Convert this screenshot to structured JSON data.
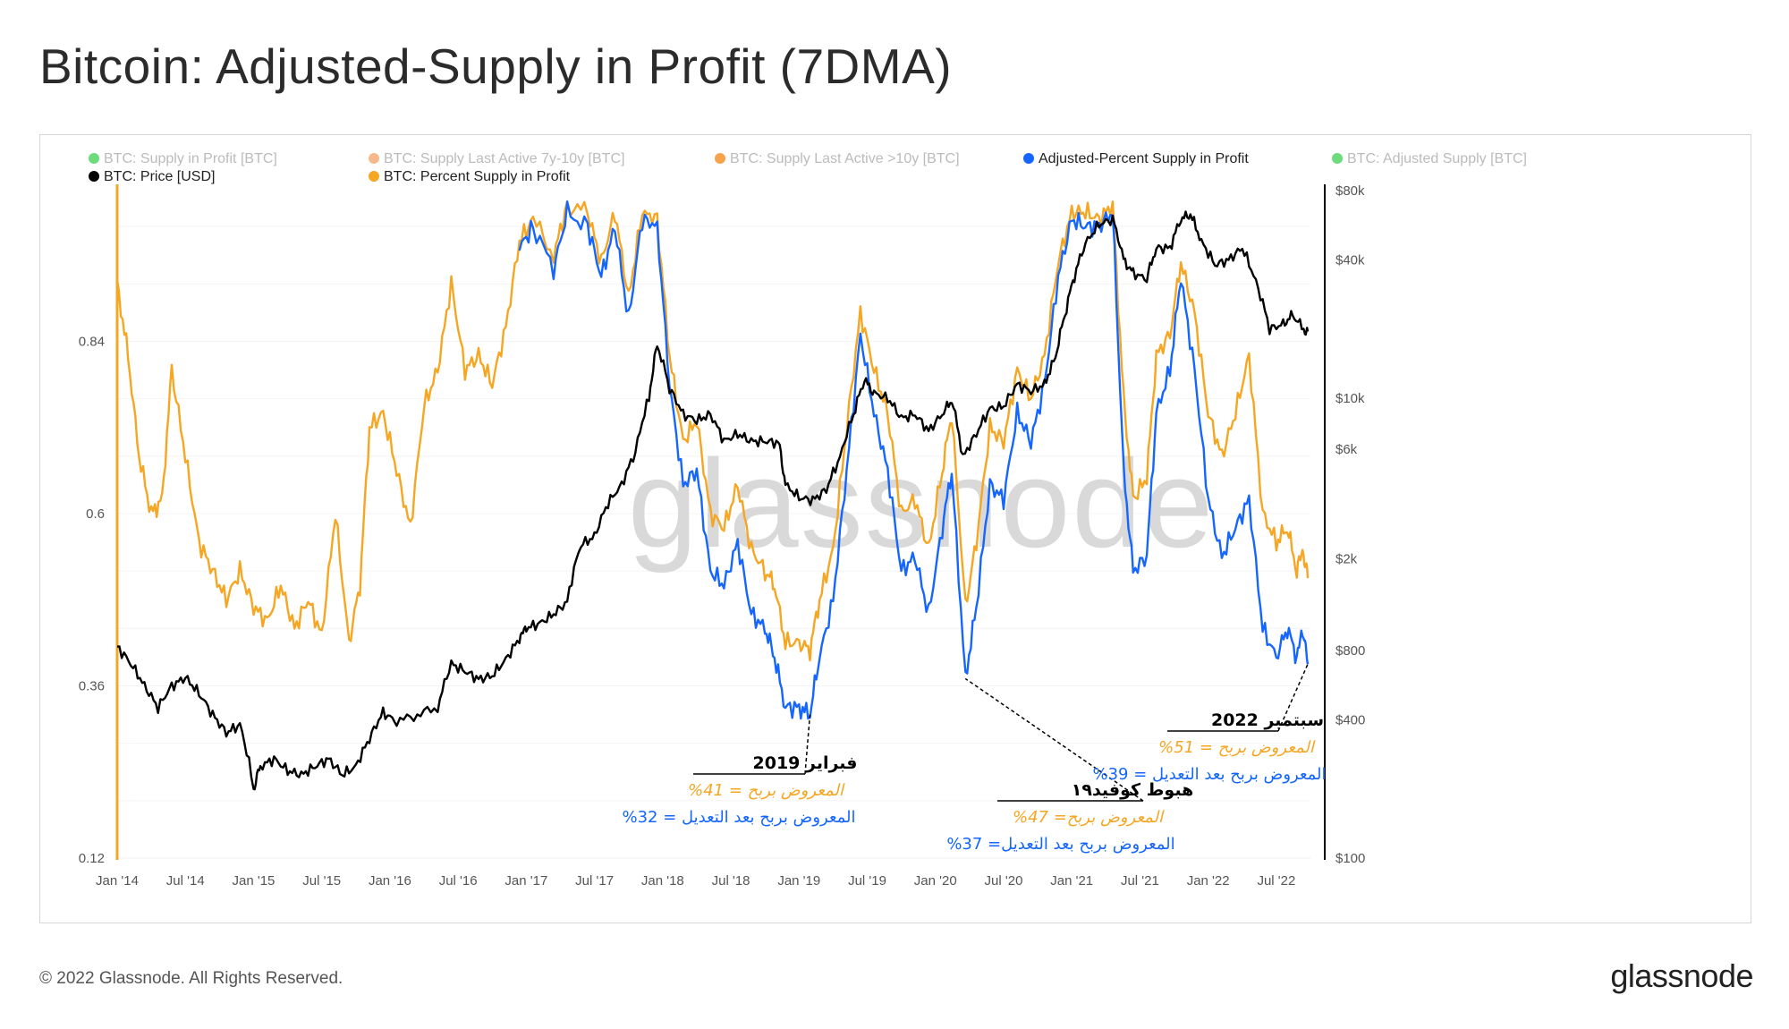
{
  "title": "Bitcoin: Adjusted-Supply in Profit (7DMA)",
  "footer": {
    "copyright": "© 2022 Glassnode. All Rights Reserved.",
    "logo": "glassnode"
  },
  "watermark": "glassnode",
  "legend": [
    {
      "label": "BTC: Supply in Profit [BTC]",
      "color": "#2ecc40",
      "dim": true
    },
    {
      "label": "BTC: Supply Last Active 7y-10y [BTC]",
      "color": "#f39a5a",
      "dim": true
    },
    {
      "label": "BTC: Supply Last Active >10y [BTC]",
      "color": "#f57c00",
      "dim": true
    },
    {
      "label": "Adjusted-Percent Supply in Profit",
      "color": "#1565ff",
      "dim": false
    },
    {
      "label": "BTC: Adjusted Supply [BTC]",
      "color": "#2ecc40",
      "dim": true
    },
    {
      "label": "BTC: Price [USD]",
      "color": "#000000",
      "dim": false
    },
    {
      "label": "BTC: Percent Supply in Profit",
      "color": "#f5a623",
      "dim": false
    }
  ],
  "colors": {
    "price": "#000000",
    "percent_supply": "#f5a623",
    "adjusted_percent": "#1565ff",
    "left_axis_line": "#f5a623",
    "annotation_dark": "#000000"
  },
  "annotations": [
    {
      "id": "feb2019",
      "title": "فبراير 2019",
      "line1": "المعروض بربح = 41%",
      "line2": "المعروض بربح بعد التعديل = 32%"
    },
    {
      "id": "covid",
      "title": "هبوط كوفيد١٩",
      "line1": "المعروض بربح= 47%",
      "line2": "المعروض بربح بعد التعديل= 37%"
    },
    {
      "id": "sep2022",
      "title": "سبتمبر 2022",
      "line1": "المعروض بربح = 51%",
      "line2": "المعروض بربح بعد التعديل = 39%"
    }
  ],
  "chart_data": {
    "type": "line",
    "title": "Bitcoin: Adjusted-Supply in Profit (7DMA)",
    "x_ticks": [
      "Jan '14",
      "Jul '14",
      "Jan '15",
      "Jul '15",
      "Jan '16",
      "Jul '16",
      "Jan '17",
      "Jul '17",
      "Jan '18",
      "Jul '18",
      "Jan '19",
      "Jul '19",
      "Jan '20",
      "Jul '20",
      "Jan '21",
      "Jul '21",
      "Jan '22",
      "Jul '22"
    ],
    "x_range": [
      2014.0,
      2022.75
    ],
    "y_left": {
      "ticks": [
        "0.12",
        "0.36",
        "0.6",
        "0.84"
      ],
      "range": [
        0.12,
        1.05
      ]
    },
    "y_right": {
      "ticks": [
        "$100",
        "$400",
        "$800",
        "$2k",
        "$6k",
        "$10k",
        "$40k",
        "$80k"
      ],
      "scale": "log",
      "range": [
        100,
        80000
      ]
    },
    "grid": true,
    "legend_position": "top",
    "series": [
      {
        "name": "BTC: Price [USD]",
        "axis": "right",
        "points": [
          [
            2014.0,
            830
          ],
          [
            2014.1,
            700
          ],
          [
            2014.2,
            560
          ],
          [
            2014.3,
            450
          ],
          [
            2014.4,
            560
          ],
          [
            2014.5,
            610
          ],
          [
            2014.6,
            520
          ],
          [
            2014.7,
            420
          ],
          [
            2014.8,
            350
          ],
          [
            2014.9,
            380
          ],
          [
            2015.0,
            200
          ],
          [
            2015.05,
            250
          ],
          [
            2015.15,
            270
          ],
          [
            2015.25,
            240
          ],
          [
            2015.35,
            230
          ],
          [
            2015.45,
            250
          ],
          [
            2015.55,
            270
          ],
          [
            2015.65,
            230
          ],
          [
            2015.75,
            250
          ],
          [
            2015.85,
            330
          ],
          [
            2015.95,
            430
          ],
          [
            2016.05,
            390
          ],
          [
            2016.2,
            420
          ],
          [
            2016.35,
            450
          ],
          [
            2016.45,
            700
          ],
          [
            2016.55,
            650
          ],
          [
            2016.65,
            600
          ],
          [
            2016.75,
            620
          ],
          [
            2016.85,
            730
          ],
          [
            2016.95,
            900
          ],
          [
            2017.0,
            1000
          ],
          [
            2017.1,
            1050
          ],
          [
            2017.2,
            1150
          ],
          [
            2017.3,
            1300
          ],
          [
            2017.4,
            2300
          ],
          [
            2017.5,
            2500
          ],
          [
            2017.6,
            3500
          ],
          [
            2017.7,
            4200
          ],
          [
            2017.8,
            5800
          ],
          [
            2017.9,
            10000
          ],
          [
            2017.96,
            17000
          ],
          [
            2018.05,
            11000
          ],
          [
            2018.15,
            8500
          ],
          [
            2018.25,
            8000
          ],
          [
            2018.35,
            8500
          ],
          [
            2018.45,
            6500
          ],
          [
            2018.55,
            7000
          ],
          [
            2018.65,
            6500
          ],
          [
            2018.75,
            6500
          ],
          [
            2018.85,
            6400
          ],
          [
            2018.9,
            4200
          ],
          [
            2019.0,
            3700
          ],
          [
            2019.1,
            3600
          ],
          [
            2019.2,
            4000
          ],
          [
            2019.3,
            5500
          ],
          [
            2019.4,
            8500
          ],
          [
            2019.48,
            12000
          ],
          [
            2019.55,
            10500
          ],
          [
            2019.65,
            10000
          ],
          [
            2019.75,
            8200
          ],
          [
            2019.85,
            8500
          ],
          [
            2019.95,
            7200
          ],
          [
            2020.05,
            8500
          ],
          [
            2020.12,
            9800
          ],
          [
            2020.2,
            5500
          ],
          [
            2020.3,
            7000
          ],
          [
            2020.4,
            9000
          ],
          [
            2020.5,
            9200
          ],
          [
            2020.6,
            11500
          ],
          [
            2020.7,
            10700
          ],
          [
            2020.8,
            11500
          ],
          [
            2020.88,
            15000
          ],
          [
            2020.95,
            23000
          ],
          [
            2021.02,
            34000
          ],
          [
            2021.1,
            47000
          ],
          [
            2021.2,
            57000
          ],
          [
            2021.3,
            60000
          ],
          [
            2021.38,
            40000
          ],
          [
            2021.45,
            35000
          ],
          [
            2021.55,
            33000
          ],
          [
            2021.62,
            45000
          ],
          [
            2021.72,
            45000
          ],
          [
            2021.8,
            60000
          ],
          [
            2021.87,
            63000
          ],
          [
            2021.95,
            48000
          ],
          [
            2022.05,
            38000
          ],
          [
            2022.15,
            40000
          ],
          [
            2022.25,
            45000
          ],
          [
            2022.35,
            32000
          ],
          [
            2022.45,
            20000
          ],
          [
            2022.55,
            21000
          ],
          [
            2022.62,
            23000
          ],
          [
            2022.7,
            20000
          ],
          [
            2022.73,
            19500
          ]
        ]
      },
      {
        "name": "BTC: Percent Supply in Profit",
        "axis": "left",
        "points": [
          [
            2014.0,
            0.92
          ],
          [
            2014.08,
            0.82
          ],
          [
            2014.16,
            0.68
          ],
          [
            2014.25,
            0.6
          ],
          [
            2014.33,
            0.62
          ],
          [
            2014.4,
            0.8
          ],
          [
            2014.5,
            0.68
          ],
          [
            2014.6,
            0.56
          ],
          [
            2014.7,
            0.52
          ],
          [
            2014.8,
            0.48
          ],
          [
            2014.9,
            0.52
          ],
          [
            2015.0,
            0.47
          ],
          [
            2015.1,
            0.45
          ],
          [
            2015.2,
            0.5
          ],
          [
            2015.3,
            0.44
          ],
          [
            2015.4,
            0.48
          ],
          [
            2015.5,
            0.43
          ],
          [
            2015.6,
            0.6
          ],
          [
            2015.7,
            0.42
          ],
          [
            2015.78,
            0.5
          ],
          [
            2015.85,
            0.72
          ],
          [
            2015.95,
            0.74
          ],
          [
            2016.05,
            0.66
          ],
          [
            2016.15,
            0.58
          ],
          [
            2016.25,
            0.75
          ],
          [
            2016.35,
            0.8
          ],
          [
            2016.45,
            0.92
          ],
          [
            2016.55,
            0.8
          ],
          [
            2016.65,
            0.82
          ],
          [
            2016.75,
            0.78
          ],
          [
            2016.85,
            0.86
          ],
          [
            2016.95,
            0.98
          ],
          [
            2017.05,
            1.01
          ],
          [
            2017.2,
            0.96
          ],
          [
            2017.3,
            1.03
          ],
          [
            2017.45,
            1.02
          ],
          [
            2017.55,
            0.95
          ],
          [
            2017.65,
            1.02
          ],
          [
            2017.75,
            0.9
          ],
          [
            2017.85,
            1.02
          ],
          [
            2017.96,
            1.01
          ],
          [
            2018.05,
            0.82
          ],
          [
            2018.15,
            0.7
          ],
          [
            2018.25,
            0.73
          ],
          [
            2018.35,
            0.6
          ],
          [
            2018.45,
            0.58
          ],
          [
            2018.55,
            0.64
          ],
          [
            2018.65,
            0.55
          ],
          [
            2018.75,
            0.52
          ],
          [
            2018.82,
            0.5
          ],
          [
            2018.9,
            0.42
          ],
          [
            2019.0,
            0.42
          ],
          [
            2019.08,
            0.41
          ],
          [
            2019.15,
            0.48
          ],
          [
            2019.25,
            0.55
          ],
          [
            2019.35,
            0.72
          ],
          [
            2019.45,
            0.88
          ],
          [
            2019.55,
            0.8
          ],
          [
            2019.65,
            0.74
          ],
          [
            2019.75,
            0.6
          ],
          [
            2019.85,
            0.62
          ],
          [
            2019.95,
            0.55
          ],
          [
            2020.05,
            0.66
          ],
          [
            2020.12,
            0.74
          ],
          [
            2020.22,
            0.47
          ],
          [
            2020.3,
            0.56
          ],
          [
            2020.4,
            0.72
          ],
          [
            2020.5,
            0.7
          ],
          [
            2020.6,
            0.8
          ],
          [
            2020.7,
            0.76
          ],
          [
            2020.8,
            0.82
          ],
          [
            2020.9,
            0.95
          ],
          [
            2021.0,
            1.02
          ],
          [
            2021.1,
            1.02
          ],
          [
            2021.2,
            1.01
          ],
          [
            2021.3,
            1.03
          ],
          [
            2021.38,
            0.76
          ],
          [
            2021.45,
            0.62
          ],
          [
            2021.55,
            0.65
          ],
          [
            2021.62,
            0.82
          ],
          [
            2021.72,
            0.85
          ],
          [
            2021.8,
            0.95
          ],
          [
            2021.9,
            0.88
          ],
          [
            2022.0,
            0.74
          ],
          [
            2022.1,
            0.68
          ],
          [
            2022.2,
            0.74
          ],
          [
            2022.3,
            0.82
          ],
          [
            2022.4,
            0.6
          ],
          [
            2022.5,
            0.56
          ],
          [
            2022.58,
            0.58
          ],
          [
            2022.65,
            0.52
          ],
          [
            2022.7,
            0.55
          ],
          [
            2022.73,
            0.51
          ]
        ]
      },
      {
        "name": "Adjusted-Percent Supply in Profit",
        "axis": "left",
        "points": [
          [
            2016.95,
            0.97
          ],
          [
            2017.05,
            1.0
          ],
          [
            2017.2,
            0.94
          ],
          [
            2017.3,
            1.02
          ],
          [
            2017.45,
            1.0
          ],
          [
            2017.55,
            0.93
          ],
          [
            2017.65,
            1.0
          ],
          [
            2017.75,
            0.87
          ],
          [
            2017.85,
            1.01
          ],
          [
            2017.96,
            1.0
          ],
          [
            2018.05,
            0.78
          ],
          [
            2018.15,
            0.64
          ],
          [
            2018.25,
            0.66
          ],
          [
            2018.35,
            0.52
          ],
          [
            2018.45,
            0.5
          ],
          [
            2018.55,
            0.56
          ],
          [
            2018.65,
            0.46
          ],
          [
            2018.75,
            0.44
          ],
          [
            2018.82,
            0.4
          ],
          [
            2018.9,
            0.33
          ],
          [
            2019.0,
            0.33
          ],
          [
            2019.08,
            0.32
          ],
          [
            2019.15,
            0.4
          ],
          [
            2019.25,
            0.48
          ],
          [
            2019.35,
            0.66
          ],
          [
            2019.45,
            0.85
          ],
          [
            2019.55,
            0.74
          ],
          [
            2019.65,
            0.66
          ],
          [
            2019.75,
            0.52
          ],
          [
            2019.85,
            0.54
          ],
          [
            2019.95,
            0.46
          ],
          [
            2020.05,
            0.58
          ],
          [
            2020.12,
            0.66
          ],
          [
            2020.22,
            0.37
          ],
          [
            2020.3,
            0.47
          ],
          [
            2020.4,
            0.64
          ],
          [
            2020.5,
            0.62
          ],
          [
            2020.6,
            0.74
          ],
          [
            2020.7,
            0.7
          ],
          [
            2020.8,
            0.78
          ],
          [
            2020.9,
            0.93
          ],
          [
            2021.0,
            1.01
          ],
          [
            2021.1,
            1.0
          ],
          [
            2021.2,
            1.0
          ],
          [
            2021.3,
            1.02
          ],
          [
            2021.38,
            0.66
          ],
          [
            2021.45,
            0.52
          ],
          [
            2021.55,
            0.54
          ],
          [
            2021.62,
            0.74
          ],
          [
            2021.72,
            0.8
          ],
          [
            2021.8,
            0.93
          ],
          [
            2021.9,
            0.8
          ],
          [
            2022.0,
            0.62
          ],
          [
            2022.1,
            0.54
          ],
          [
            2022.2,
            0.58
          ],
          [
            2022.3,
            0.62
          ],
          [
            2022.4,
            0.44
          ],
          [
            2022.5,
            0.4
          ],
          [
            2022.58,
            0.44
          ],
          [
            2022.65,
            0.4
          ],
          [
            2022.7,
            0.44
          ],
          [
            2022.73,
            0.39
          ]
        ]
      }
    ]
  }
}
